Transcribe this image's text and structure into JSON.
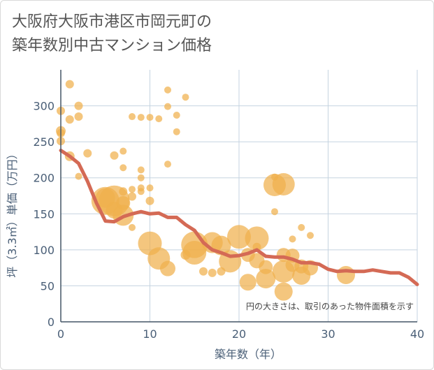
{
  "title": {
    "line1": "大阪府大阪市港区市岡元町の",
    "line2": "築年数別中古マンション価格"
  },
  "chart_data": {
    "type": "scatter",
    "xlabel": "築年数（年）",
    "ylabel": "坪（3.3㎡）単価（万円）",
    "xlim": [
      0,
      40
    ],
    "ylim": [
      0,
      350
    ],
    "x_ticks": [
      0,
      10,
      20,
      30,
      40
    ],
    "y_ticks": [
      0,
      50,
      100,
      150,
      200,
      250,
      300
    ],
    "grid": true,
    "annotation": "円の大きさは、取引のあった物件面積を示す",
    "colors": {
      "bubble": "#f0b04c",
      "line": "#d46a55",
      "grid": "#c5d3e0",
      "text": "#4a5f77"
    },
    "bubbles": [
      {
        "x": 0,
        "y": 293,
        "s": 6
      },
      {
        "x": 0,
        "y": 265,
        "s": 7
      },
      {
        "x": 0,
        "y": 262,
        "s": 6
      },
      {
        "x": 0,
        "y": 251,
        "s": 6
      },
      {
        "x": 1,
        "y": 330,
        "s": 6
      },
      {
        "x": 1,
        "y": 281,
        "s": 6
      },
      {
        "x": 1,
        "y": 230,
        "s": 7
      },
      {
        "x": 2,
        "y": 300,
        "s": 6
      },
      {
        "x": 2,
        "y": 285,
        "s": 6
      },
      {
        "x": 2,
        "y": 202,
        "s": 5
      },
      {
        "x": 3,
        "y": 234,
        "s": 6
      },
      {
        "x": 5,
        "y": 168,
        "s": 20
      },
      {
        "x": 5,
        "y": 172,
        "s": 14
      },
      {
        "x": 6,
        "y": 231,
        "s": 6
      },
      {
        "x": 6,
        "y": 168,
        "s": 22
      },
      {
        "x": 6,
        "y": 155,
        "s": 12
      },
      {
        "x": 7,
        "y": 237,
        "s": 5
      },
      {
        "x": 7,
        "y": 214,
        "s": 5
      },
      {
        "x": 7,
        "y": 181,
        "s": 6
      },
      {
        "x": 7,
        "y": 148,
        "s": 15
      },
      {
        "x": 7,
        "y": 165,
        "s": 10
      },
      {
        "x": 8,
        "y": 285,
        "s": 5
      },
      {
        "x": 8,
        "y": 184,
        "s": 5
      },
      {
        "x": 8,
        "y": 174,
        "s": 6
      },
      {
        "x": 8,
        "y": 131,
        "s": 5
      },
      {
        "x": 9,
        "y": 284,
        "s": 5
      },
      {
        "x": 9,
        "y": 211,
        "s": 5
      },
      {
        "x": 9,
        "y": 200,
        "s": 5
      },
      {
        "x": 9,
        "y": 186,
        "s": 5
      },
      {
        "x": 9,
        "y": 181,
        "s": 5
      },
      {
        "x": 10,
        "y": 284,
        "s": 5
      },
      {
        "x": 10,
        "y": 186,
        "s": 5
      },
      {
        "x": 10,
        "y": 168,
        "s": 6
      },
      {
        "x": 10,
        "y": 109,
        "s": 17
      },
      {
        "x": 11,
        "y": 282,
        "s": 5
      },
      {
        "x": 11,
        "y": 88,
        "s": 16
      },
      {
        "x": 12,
        "y": 322,
        "s": 5
      },
      {
        "x": 12,
        "y": 299,
        "s": 5
      },
      {
        "x": 12,
        "y": 219,
        "s": 5
      },
      {
        "x": 12,
        "y": 74,
        "s": 11
      },
      {
        "x": 13,
        "y": 287,
        "s": 5
      },
      {
        "x": 13,
        "y": 264,
        "s": 5
      },
      {
        "x": 14,
        "y": 312,
        "s": 5
      },
      {
        "x": 14,
        "y": 93,
        "s": 7
      },
      {
        "x": 15,
        "y": 96,
        "s": 17
      },
      {
        "x": 15,
        "y": 107,
        "s": 19
      },
      {
        "x": 16,
        "y": 70,
        "s": 6
      },
      {
        "x": 17,
        "y": 68,
        "s": 6
      },
      {
        "x": 17,
        "y": 110,
        "s": 15
      },
      {
        "x": 18,
        "y": 106,
        "s": 14
      },
      {
        "x": 18,
        "y": 70,
        "s": 6
      },
      {
        "x": 19,
        "y": 84,
        "s": 16
      },
      {
        "x": 20,
        "y": 118,
        "s": 17
      },
      {
        "x": 21,
        "y": 93,
        "s": 10
      },
      {
        "x": 21,
        "y": 55,
        "s": 12
      },
      {
        "x": 22,
        "y": 116,
        "s": 17
      },
      {
        "x": 22,
        "y": 104,
        "s": 6
      },
      {
        "x": 22,
        "y": 85,
        "s": 11
      },
      {
        "x": 23,
        "y": 60,
        "s": 14
      },
      {
        "x": 23,
        "y": 76,
        "s": 10
      },
      {
        "x": 24,
        "y": 201,
        "s": 5
      },
      {
        "x": 24,
        "y": 190,
        "s": 16
      },
      {
        "x": 24,
        "y": 153,
        "s": 5
      },
      {
        "x": 25,
        "y": 191,
        "s": 16
      },
      {
        "x": 25,
        "y": 93,
        "s": 10
      },
      {
        "x": 25,
        "y": 70,
        "s": 16
      },
      {
        "x": 25,
        "y": 42,
        "s": 13
      },
      {
        "x": 26,
        "y": 115,
        "s": 5
      },
      {
        "x": 26,
        "y": 92,
        "s": 10
      },
      {
        "x": 26,
        "y": 79,
        "s": 10
      },
      {
        "x": 27,
        "y": 131,
        "s": 5
      },
      {
        "x": 27,
        "y": 64,
        "s": 13
      },
      {
        "x": 27,
        "y": 77,
        "s": 10
      },
      {
        "x": 28,
        "y": 120,
        "s": 5
      },
      {
        "x": 28,
        "y": 75,
        "s": 11
      },
      {
        "x": 32,
        "y": 65,
        "s": 13
      }
    ],
    "line": {
      "x": [
        0,
        1,
        2,
        3,
        4,
        5,
        6,
        7,
        8,
        9,
        10,
        11,
        12,
        13,
        14,
        15,
        16,
        17,
        18,
        19,
        20,
        21,
        22,
        23,
        24,
        25,
        26,
        27,
        28,
        29,
        30,
        31,
        32,
        33,
        34,
        35,
        36,
        37,
        38,
        39,
        40
      ],
      "y": [
        238,
        230,
        220,
        195,
        165,
        140,
        139,
        146,
        150,
        153,
        150,
        151,
        145,
        145,
        135,
        127,
        110,
        100,
        96,
        91,
        92,
        95,
        100,
        91,
        90,
        90,
        87,
        82,
        82,
        80,
        73,
        70,
        71,
        70,
        70,
        72,
        70,
        68,
        68,
        62,
        52
      ]
    }
  }
}
